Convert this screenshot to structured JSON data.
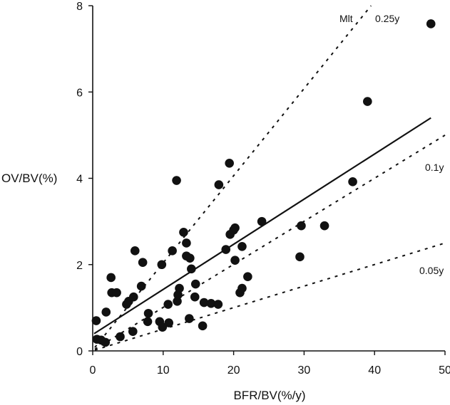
{
  "chart_data": {
    "type": "scatter",
    "title": "",
    "xlabel": "BFR/BV(%/y)",
    "ylabel": "OV/BV(%)",
    "xlim": [
      0,
      50
    ],
    "ylim": [
      0,
      8
    ],
    "xticks": [
      0,
      10,
      20,
      30,
      40,
      50
    ],
    "yticks": [
      0,
      2,
      4,
      6,
      8
    ],
    "grid": false,
    "points": [
      {
        "x": 0.5,
        "y": 0.7
      },
      {
        "x": 0.6,
        "y": 0.27
      },
      {
        "x": 1.2,
        "y": 0.25
      },
      {
        "x": 1.8,
        "y": 0.2
      },
      {
        "x": 1.9,
        "y": 0.9
      },
      {
        "x": 2.6,
        "y": 1.7
      },
      {
        "x": 2.7,
        "y": 1.35
      },
      {
        "x": 3.4,
        "y": 1.35
      },
      {
        "x": 3.9,
        "y": 0.33
      },
      {
        "x": 4.8,
        "y": 1.08
      },
      {
        "x": 5.1,
        "y": 1.15
      },
      {
        "x": 5.7,
        "y": 0.45
      },
      {
        "x": 5.8,
        "y": 1.25
      },
      {
        "x": 6.0,
        "y": 2.32
      },
      {
        "x": 6.9,
        "y": 1.5
      },
      {
        "x": 7.1,
        "y": 2.05
      },
      {
        "x": 7.8,
        "y": 0.68
      },
      {
        "x": 7.9,
        "y": 0.87
      },
      {
        "x": 9.5,
        "y": 0.68
      },
      {
        "x": 9.8,
        "y": 2.0
      },
      {
        "x": 9.9,
        "y": 0.55
      },
      {
        "x": 10.7,
        "y": 1.08
      },
      {
        "x": 10.8,
        "y": 0.65
      },
      {
        "x": 11.3,
        "y": 2.32
      },
      {
        "x": 11.9,
        "y": 3.95
      },
      {
        "x": 12.0,
        "y": 1.15
      },
      {
        "x": 12.1,
        "y": 1.3
      },
      {
        "x": 12.3,
        "y": 1.45
      },
      {
        "x": 12.9,
        "y": 2.75
      },
      {
        "x": 13.3,
        "y": 2.5
      },
      {
        "x": 13.3,
        "y": 2.2
      },
      {
        "x": 13.7,
        "y": 0.75
      },
      {
        "x": 13.8,
        "y": 2.15
      },
      {
        "x": 14.0,
        "y": 1.9
      },
      {
        "x": 14.5,
        "y": 1.25
      },
      {
        "x": 14.6,
        "y": 1.55
      },
      {
        "x": 15.6,
        "y": 0.58
      },
      {
        "x": 15.8,
        "y": 1.12
      },
      {
        "x": 16.8,
        "y": 1.1
      },
      {
        "x": 17.8,
        "y": 1.08
      },
      {
        "x": 17.9,
        "y": 3.85
      },
      {
        "x": 18.9,
        "y": 2.35
      },
      {
        "x": 19.4,
        "y": 4.35
      },
      {
        "x": 19.5,
        "y": 2.7
      },
      {
        "x": 20.0,
        "y": 2.8
      },
      {
        "x": 20.2,
        "y": 2.85
      },
      {
        "x": 20.2,
        "y": 2.1
      },
      {
        "x": 20.9,
        "y": 1.35
      },
      {
        "x": 21.2,
        "y": 1.45
      },
      {
        "x": 21.2,
        "y": 2.42
      },
      {
        "x": 22.0,
        "y": 1.72
      },
      {
        "x": 24.0,
        "y": 3.0
      },
      {
        "x": 29.4,
        "y": 2.18
      },
      {
        "x": 29.6,
        "y": 2.9
      },
      {
        "x": 32.9,
        "y": 2.9
      },
      {
        "x": 36.9,
        "y": 3.92
      },
      {
        "x": 39.0,
        "y": 5.78
      },
      {
        "x": 48.0,
        "y": 7.58
      }
    ],
    "lines": [
      {
        "style": "solid",
        "label": "",
        "x": [
          0.2,
          48
        ],
        "y": [
          0.4,
          5.4
        ]
      },
      {
        "style": "dashed",
        "label": "Mlt",
        "x": [
          0.3,
          40
        ],
        "y": [
          0.08,
          8.1
        ]
      },
      {
        "style": "dashed",
        "label": "0.25y",
        "x": [
          0.3,
          40
        ],
        "y": [
          0.08,
          8.1
        ]
      },
      {
        "style": "dashed",
        "label": "0.1y",
        "x": [
          0.3,
          50
        ],
        "y": [
          0.04,
          5.0
        ]
      },
      {
        "style": "dashed",
        "label": "0.05y",
        "x": [
          0.3,
          50
        ],
        "y": [
          0.02,
          2.5
        ]
      }
    ]
  }
}
